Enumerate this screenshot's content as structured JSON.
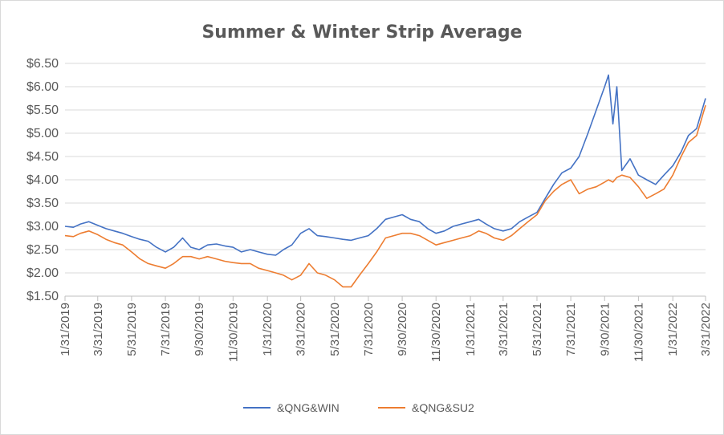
{
  "chart_data": {
    "type": "line",
    "title": "Summer & Winter Strip Average",
    "xlabel": "",
    "ylabel": "",
    "ylim": [
      1.5,
      6.5
    ],
    "y_ticks": [
      "$1.50",
      "$2.00",
      "$2.50",
      "$3.00",
      "$3.50",
      "$4.00",
      "$4.50",
      "$5.00",
      "$5.50",
      "$6.00",
      "$6.50"
    ],
    "x_ticks": [
      "1/31/2019",
      "3/31/2019",
      "5/31/2019",
      "7/31/2019",
      "9/30/2019",
      "11/30/2019",
      "1/31/2020",
      "3/31/2020",
      "5/31/2020",
      "7/31/2020",
      "9/30/2020",
      "11/30/2020",
      "1/31/2021",
      "3/31/2021",
      "5/31/2021",
      "7/31/2021",
      "9/30/2021",
      "11/30/2021",
      "1/31/2022",
      "3/31/2022"
    ],
    "grid": "horizontal",
    "legend_position": "bottom",
    "colors": {
      "&QNG&WIN": "#4472c4",
      "&QNG&SU2": "#ed7d31"
    },
    "series": [
      {
        "name": "&QNG&WIN",
        "x": [
          "1/31/2019",
          "2/15/2019",
          "2/28/2019",
          "3/15/2019",
          "3/31/2019",
          "4/15/2019",
          "4/30/2019",
          "5/15/2019",
          "5/31/2019",
          "6/15/2019",
          "6/30/2019",
          "7/15/2019",
          "7/31/2019",
          "8/15/2019",
          "8/31/2019",
          "9/15/2019",
          "9/30/2019",
          "10/15/2019",
          "10/31/2019",
          "11/15/2019",
          "11/30/2019",
          "12/15/2019",
          "12/31/2019",
          "1/15/2020",
          "1/31/2020",
          "2/15/2020",
          "2/29/2020",
          "3/15/2020",
          "3/31/2020",
          "4/15/2020",
          "4/30/2020",
          "5/15/2020",
          "5/31/2020",
          "6/15/2020",
          "6/30/2020",
          "7/15/2020",
          "7/31/2020",
          "8/15/2020",
          "8/31/2020",
          "9/15/2020",
          "9/30/2020",
          "10/15/2020",
          "10/31/2020",
          "11/15/2020",
          "11/30/2020",
          "12/15/2020",
          "12/31/2020",
          "1/15/2021",
          "1/31/2021",
          "2/15/2021",
          "2/28/2021",
          "3/15/2021",
          "3/31/2021",
          "4/15/2021",
          "4/30/2021",
          "5/15/2021",
          "5/31/2021",
          "6/15/2021",
          "6/30/2021",
          "7/15/2021",
          "7/31/2021",
          "8/15/2021",
          "8/31/2021",
          "9/15/2021",
          "9/30/2021",
          "10/7/2021",
          "10/15/2021",
          "10/22/2021",
          "10/31/2021",
          "11/15/2021",
          "11/30/2021",
          "12/15/2021",
          "12/31/2021",
          "1/15/2022",
          "1/31/2022",
          "2/15/2022",
          "2/28/2022",
          "3/15/2022",
          "3/31/2022"
        ],
        "values": [
          3.0,
          2.98,
          3.05,
          3.1,
          3.02,
          2.95,
          2.9,
          2.85,
          2.78,
          2.72,
          2.68,
          2.55,
          2.45,
          2.55,
          2.75,
          2.55,
          2.5,
          2.6,
          2.62,
          2.58,
          2.55,
          2.45,
          2.5,
          2.45,
          2.4,
          2.38,
          2.5,
          2.6,
          2.85,
          2.95,
          2.8,
          2.78,
          2.75,
          2.72,
          2.7,
          2.75,
          2.8,
          2.95,
          3.15,
          3.2,
          3.25,
          3.15,
          3.1,
          2.95,
          2.85,
          2.9,
          3.0,
          3.05,
          3.1,
          3.15,
          3.05,
          2.95,
          2.9,
          2.95,
          3.1,
          3.2,
          3.3,
          3.6,
          3.9,
          4.15,
          4.25,
          4.5,
          5.0,
          5.5,
          6.0,
          6.25,
          5.2,
          6.0,
          4.2,
          4.45,
          4.1,
          4.0,
          3.9,
          4.1,
          4.3,
          4.6,
          4.95,
          5.1,
          5.75
        ]
      },
      {
        "name": "&QNG&SU2",
        "x": [
          "1/31/2019",
          "2/15/2019",
          "2/28/2019",
          "3/15/2019",
          "3/31/2019",
          "4/15/2019",
          "4/30/2019",
          "5/15/2019",
          "5/31/2019",
          "6/15/2019",
          "6/30/2019",
          "7/15/2019",
          "7/31/2019",
          "8/15/2019",
          "8/31/2019",
          "9/15/2019",
          "9/30/2019",
          "10/15/2019",
          "10/31/2019",
          "11/15/2019",
          "11/30/2019",
          "12/15/2019",
          "12/31/2019",
          "1/15/2020",
          "1/31/2020",
          "2/15/2020",
          "2/29/2020",
          "3/15/2020",
          "3/31/2020",
          "4/15/2020",
          "4/30/2020",
          "5/15/2020",
          "5/31/2020",
          "6/15/2020",
          "6/30/2020",
          "7/15/2020",
          "7/31/2020",
          "8/15/2020",
          "8/31/2020",
          "9/15/2020",
          "9/30/2020",
          "10/15/2020",
          "10/31/2020",
          "11/15/2020",
          "11/30/2020",
          "12/15/2020",
          "12/31/2020",
          "1/15/2021",
          "1/31/2021",
          "2/15/2021",
          "2/28/2021",
          "3/15/2021",
          "3/31/2021",
          "4/15/2021",
          "4/30/2021",
          "5/15/2021",
          "5/31/2021",
          "6/15/2021",
          "6/30/2021",
          "7/15/2021",
          "7/31/2021",
          "8/15/2021",
          "8/31/2021",
          "9/15/2021",
          "9/30/2021",
          "10/7/2021",
          "10/15/2021",
          "10/22/2021",
          "10/31/2021",
          "11/15/2021",
          "11/30/2021",
          "12/15/2021",
          "12/31/2021",
          "1/15/2022",
          "1/31/2022",
          "2/15/2022",
          "2/28/2022",
          "3/15/2022",
          "3/31/2022"
        ],
        "values": [
          2.8,
          2.78,
          2.85,
          2.9,
          2.82,
          2.72,
          2.65,
          2.6,
          2.45,
          2.3,
          2.2,
          2.15,
          2.1,
          2.2,
          2.35,
          2.35,
          2.3,
          2.35,
          2.3,
          2.25,
          2.22,
          2.2,
          2.2,
          2.1,
          2.05,
          2.0,
          1.95,
          1.85,
          1.95,
          2.2,
          2.0,
          1.95,
          1.85,
          1.7,
          1.7,
          1.95,
          2.2,
          2.45,
          2.75,
          2.8,
          2.85,
          2.85,
          2.8,
          2.7,
          2.6,
          2.65,
          2.7,
          2.75,
          2.8,
          2.9,
          2.85,
          2.75,
          2.7,
          2.8,
          2.95,
          3.1,
          3.25,
          3.55,
          3.75,
          3.9,
          4.0,
          3.7,
          3.8,
          3.85,
          3.95,
          4.0,
          3.95,
          4.05,
          4.1,
          4.05,
          3.85,
          3.6,
          3.7,
          3.8,
          4.1,
          4.5,
          4.8,
          4.95,
          5.6
        ]
      }
    ]
  }
}
